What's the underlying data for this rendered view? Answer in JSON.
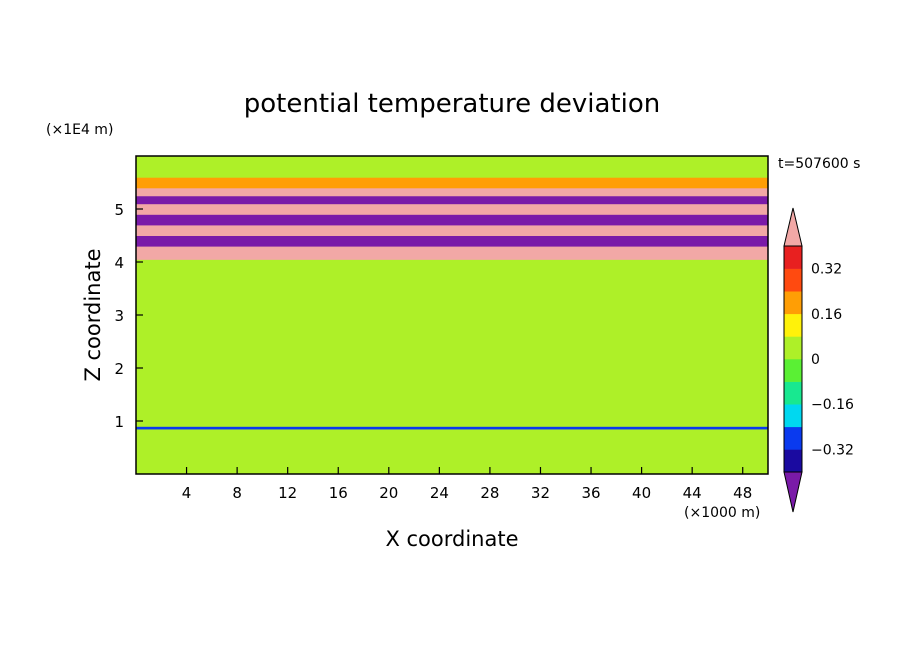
{
  "chart_data": {
    "type": "heatmap",
    "title": "potential temperature deviation",
    "xlabel": "X coordinate",
    "ylabel": "Z coordinate",
    "x_unit_label": "(×1000 m)",
    "y_unit_label": "(×1E4 m)",
    "time_label": "t=507600 s",
    "xlim": [
      0,
      50
    ],
    "ylim": [
      0,
      6
    ],
    "x_ticks": [
      4,
      8,
      12,
      16,
      20,
      24,
      28,
      32,
      36,
      40,
      44,
      48
    ],
    "y_ticks": [
      1,
      2,
      3,
      4,
      5
    ],
    "colorbar": {
      "levels": [
        -0.4,
        -0.32,
        -0.24,
        -0.16,
        -0.08,
        0,
        0.08,
        0.16,
        0.24,
        0.32,
        0.4
      ],
      "tick_labels": [
        "0.32",
        "0.16",
        "0",
        "−0.16",
        "−0.32"
      ],
      "tick_values": [
        0.32,
        0.16,
        0,
        -0.16,
        -0.32
      ],
      "colors": [
        "#7a1aa8",
        "#1a0aa0",
        "#0a3aef",
        "#00d8f0",
        "#18e890",
        "#5af034",
        "#aef028",
        "#fff20a",
        "#ff9e05",
        "#ff4a10",
        "#e82020",
        "#f2a8a6"
      ],
      "extend": "both"
    },
    "bands": [
      {
        "z0": 0.0,
        "z1": 0.85,
        "value": 0.0
      },
      {
        "z0": 0.85,
        "z1": 0.9,
        "value": -0.3
      },
      {
        "z0": 0.9,
        "z1": 3.95,
        "value": 0.05
      },
      {
        "z0": 3.95,
        "z1": 4.05,
        "value": 0.0
      },
      {
        "z0": 4.05,
        "z1": 4.3,
        "value": 0.45
      },
      {
        "z0": 4.3,
        "z1": 4.5,
        "value": -0.45
      },
      {
        "z0": 4.5,
        "z1": 4.7,
        "value": 0.45
      },
      {
        "z0": 4.7,
        "z1": 4.9,
        "value": -0.45
      },
      {
        "z0": 4.9,
        "z1": 5.1,
        "value": 0.45
      },
      {
        "z0": 5.1,
        "z1": 5.25,
        "value": -0.45
      },
      {
        "z0": 5.25,
        "z1": 5.4,
        "value": 0.45
      },
      {
        "z0": 5.4,
        "z1": 5.6,
        "value": 0.16
      },
      {
        "z0": 5.6,
        "z1": 6.0,
        "value": 0.0
      }
    ]
  }
}
